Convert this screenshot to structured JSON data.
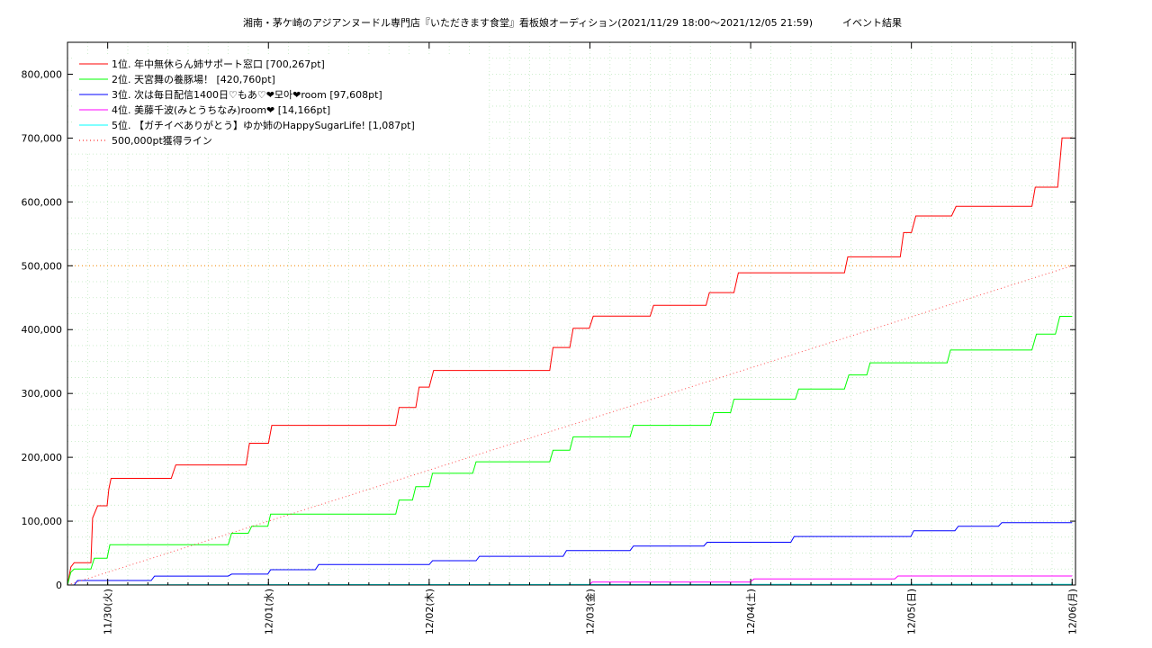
{
  "chart_data": {
    "type": "line",
    "title": "湘南・茅ケ崎のアジアンヌードル専門店『いただきます食堂』看板娘オーディション(2021/11/29 18:00～2021/12/05 21:59)　　　イベント結果",
    "xlabel": "",
    "ylabel": "",
    "x_range": [
      "2021-11-29T18:00",
      "2021-12-06T00:30"
    ],
    "ylim": [
      0,
      850000
    ],
    "grid": true,
    "legend_position": "top-left",
    "x_tick_labels": [
      {
        "x": "2021-11-30T00:00",
        "label": "11/30(火)"
      },
      {
        "x": "2021-12-01T00:00",
        "label": "12/01(水)"
      },
      {
        "x": "2021-12-02T00:00",
        "label": "12/02(木)"
      },
      {
        "x": "2021-12-03T00:00",
        "label": "12/03(金)"
      },
      {
        "x": "2021-12-04T00:00",
        "label": "12/04(土)"
      },
      {
        "x": "2021-12-05T00:00",
        "label": "12/05(日)"
      },
      {
        "x": "2021-12-06T00:00",
        "label": "12/06(月)"
      }
    ],
    "y_ticks": [
      {
        "value": 0,
        "label": "0"
      },
      {
        "value": 100000,
        "label": "100,000"
      },
      {
        "value": 200000,
        "label": "200,000"
      },
      {
        "value": 300000,
        "label": "300,000"
      },
      {
        "value": 400000,
        "label": "400,000"
      },
      {
        "value": 500000,
        "label": "500,000"
      },
      {
        "value": 600000,
        "label": "600,000"
      },
      {
        "value": 700000,
        "label": "700,000"
      },
      {
        "value": 800000,
        "label": "800,000"
      }
    ],
    "series": [
      {
        "name": "1位. 年中無休らん姉サポート窓口 [700,267pt]",
        "color": "#ff0000",
        "style": "solid",
        "points": [
          [
            "2021-11-29T18:00",
            0
          ],
          [
            "2021-11-29T18:30",
            28000
          ],
          [
            "2021-11-29T19:00",
            35000
          ],
          [
            "2021-11-29T21:30",
            35000
          ],
          [
            "2021-11-29T21:45",
            105000
          ],
          [
            "2021-11-29T22:30",
            124000
          ],
          [
            "2021-11-29T23:55",
            124000
          ],
          [
            "2021-11-30T00:10",
            150000
          ],
          [
            "2021-11-30T00:30",
            167000
          ],
          [
            "2021-11-30T09:30",
            167000
          ],
          [
            "2021-11-30T10:10",
            188000
          ],
          [
            "2021-11-30T20:40",
            188000
          ],
          [
            "2021-11-30T21:10",
            222000
          ],
          [
            "2021-12-01T00:00",
            222000
          ],
          [
            "2021-12-01T00:30",
            250000
          ],
          [
            "2021-12-01T19:00",
            250000
          ],
          [
            "2021-12-01T19:30",
            278000
          ],
          [
            "2021-12-01T22:00",
            278000
          ],
          [
            "2021-12-01T22:30",
            310000
          ],
          [
            "2021-12-02T00:00",
            310000
          ],
          [
            "2021-12-02T00:40",
            336000
          ],
          [
            "2021-12-02T18:00",
            336000
          ],
          [
            "2021-12-02T18:30",
            372000
          ],
          [
            "2021-12-02T21:00",
            372000
          ],
          [
            "2021-12-02T21:30",
            402000
          ],
          [
            "2021-12-02T23:55",
            402000
          ],
          [
            "2021-12-03T00:30",
            421000
          ],
          [
            "2021-12-03T09:00",
            421000
          ],
          [
            "2021-12-03T09:30",
            438000
          ],
          [
            "2021-12-03T17:20",
            438000
          ],
          [
            "2021-12-03T17:50",
            458000
          ],
          [
            "2021-12-03T21:30",
            458000
          ],
          [
            "2021-12-03T22:10",
            489000
          ],
          [
            "2021-12-04T14:00",
            489000
          ],
          [
            "2021-12-04T14:30",
            514000
          ],
          [
            "2021-12-04T22:20",
            514000
          ],
          [
            "2021-12-04T22:50",
            552000
          ],
          [
            "2021-12-05T00:00",
            552000
          ],
          [
            "2021-12-05T00:40",
            578000
          ],
          [
            "2021-12-05T06:00",
            578000
          ],
          [
            "2021-12-05T06:40",
            593000
          ],
          [
            "2021-12-05T18:00",
            593000
          ],
          [
            "2021-12-05T18:30",
            623000
          ],
          [
            "2021-12-05T21:50",
            623000
          ],
          [
            "2021-12-05T22:30",
            700267
          ],
          [
            "2021-12-06T00:00",
            700267
          ]
        ]
      },
      {
        "name": "2位. 天宮舞の養豚場！ [420,760pt]",
        "color": "#00ff00",
        "style": "solid",
        "points": [
          [
            "2021-11-29T18:00",
            0
          ],
          [
            "2021-11-29T18:30",
            20000
          ],
          [
            "2021-11-29T19:00",
            25000
          ],
          [
            "2021-11-29T21:30",
            25000
          ],
          [
            "2021-11-29T22:00",
            42000
          ],
          [
            "2021-11-29T23:55",
            42000
          ],
          [
            "2021-11-30T00:20",
            63000
          ],
          [
            "2021-11-30T18:00",
            63000
          ],
          [
            "2021-11-30T18:30",
            81000
          ],
          [
            "2021-11-30T21:00",
            81000
          ],
          [
            "2021-11-30T21:30",
            92000
          ],
          [
            "2021-11-30T23:55",
            92000
          ],
          [
            "2021-12-01T00:20",
            111000
          ],
          [
            "2021-12-01T19:00",
            111000
          ],
          [
            "2021-12-01T19:30",
            133000
          ],
          [
            "2021-12-01T21:30",
            133000
          ],
          [
            "2021-12-01T22:00",
            154000
          ],
          [
            "2021-12-02T00:00",
            154000
          ],
          [
            "2021-12-02T00:30",
            175000
          ],
          [
            "2021-12-02T06:30",
            175000
          ],
          [
            "2021-12-02T07:00",
            193000
          ],
          [
            "2021-12-02T18:00",
            193000
          ],
          [
            "2021-12-02T18:30",
            211000
          ],
          [
            "2021-12-02T21:00",
            211000
          ],
          [
            "2021-12-02T21:30",
            232000
          ],
          [
            "2021-12-03T06:00",
            232000
          ],
          [
            "2021-12-03T06:30",
            250000
          ],
          [
            "2021-12-03T18:00",
            250000
          ],
          [
            "2021-12-03T18:30",
            270000
          ],
          [
            "2021-12-03T21:00",
            270000
          ],
          [
            "2021-12-03T21:30",
            291000
          ],
          [
            "2021-12-04T06:40",
            291000
          ],
          [
            "2021-12-04T07:10",
            307000
          ],
          [
            "2021-12-04T14:00",
            307000
          ],
          [
            "2021-12-04T14:40",
            329000
          ],
          [
            "2021-12-04T17:20",
            329000
          ],
          [
            "2021-12-04T17:50",
            348000
          ],
          [
            "2021-12-05T05:20",
            348000
          ],
          [
            "2021-12-05T05:50",
            368000
          ],
          [
            "2021-12-05T18:00",
            368000
          ],
          [
            "2021-12-05T18:40",
            393000
          ],
          [
            "2021-12-05T21:30",
            393000
          ],
          [
            "2021-12-05T22:10",
            420760
          ],
          [
            "2021-12-06T00:00",
            420760
          ]
        ]
      },
      {
        "name": "3位. 次は毎日配信1400日♡もあ♡❤모아❤room [97,608pt]",
        "color": "#0000ff",
        "style": "solid",
        "points": [
          [
            "2021-11-29T18:00",
            0
          ],
          [
            "2021-11-29T19:00",
            0
          ],
          [
            "2021-11-29T19:30",
            7000
          ],
          [
            "2021-11-30T06:30",
            7000
          ],
          [
            "2021-11-30T07:00",
            14000
          ],
          [
            "2021-11-30T18:00",
            14000
          ],
          [
            "2021-11-30T18:30",
            17000
          ],
          [
            "2021-11-30T23:55",
            17000
          ],
          [
            "2021-12-01T00:20",
            24000
          ],
          [
            "2021-12-01T07:00",
            24000
          ],
          [
            "2021-12-01T07:30",
            32000
          ],
          [
            "2021-12-02T00:00",
            32000
          ],
          [
            "2021-12-02T00:30",
            38000
          ],
          [
            "2021-12-02T07:00",
            38000
          ],
          [
            "2021-12-02T07:30",
            45000
          ],
          [
            "2021-12-02T20:00",
            45000
          ],
          [
            "2021-12-02T20:30",
            54000
          ],
          [
            "2021-12-03T06:00",
            54000
          ],
          [
            "2021-12-03T06:30",
            61000
          ],
          [
            "2021-12-03T17:00",
            61000
          ],
          [
            "2021-12-03T17:30",
            67000
          ],
          [
            "2021-12-04T06:00",
            67000
          ],
          [
            "2021-12-04T06:30",
            76000
          ],
          [
            "2021-12-04T23:55",
            76000
          ],
          [
            "2021-12-05T00:20",
            85000
          ],
          [
            "2021-12-05T06:30",
            85000
          ],
          [
            "2021-12-05T07:00",
            92000
          ],
          [
            "2021-12-05T13:00",
            92000
          ],
          [
            "2021-12-05T13:30",
            97608
          ],
          [
            "2021-12-06T00:00",
            97608
          ]
        ]
      },
      {
        "name": "4位. 美藤千波(みとうちなみ)room❤ [14,166pt]",
        "color": "#ff00ff",
        "style": "solid",
        "points": [
          [
            "2021-11-29T18:00",
            0
          ],
          [
            "2021-12-02T23:55",
            0
          ],
          [
            "2021-12-03T00:20",
            4500
          ],
          [
            "2021-12-03T23:55",
            4500
          ],
          [
            "2021-12-04T00:30",
            9500
          ],
          [
            "2021-12-04T21:30",
            9500
          ],
          [
            "2021-12-04T22:00",
            14166
          ],
          [
            "2021-12-06T00:00",
            14166
          ]
        ]
      },
      {
        "name": "5位. 【ガチイベありがとう】ゆか姉のHappySugarLife! [1,087pt]",
        "color": "#00ffff",
        "style": "solid",
        "points": [
          [
            "2021-11-29T18:00",
            0
          ],
          [
            "2021-11-30T12:00",
            500
          ],
          [
            "2021-12-03T00:00",
            800
          ],
          [
            "2021-12-06T00:00",
            1087
          ]
        ]
      },
      {
        "name": "500,000pt獲得ライン",
        "color": "#ff0000",
        "style": "dotted",
        "points": [
          [
            "2021-11-29T18:00",
            0
          ],
          [
            "2021-12-06T00:00",
            500000
          ]
        ]
      }
    ],
    "reference_lines": [
      {
        "y": 500000,
        "color": "#ff8800",
        "style": "dotted"
      }
    ]
  }
}
